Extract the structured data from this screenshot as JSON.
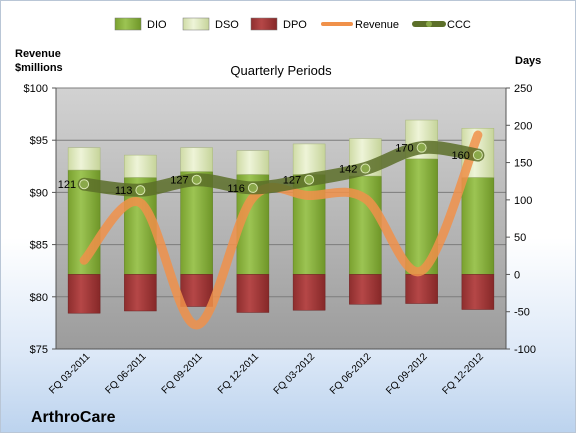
{
  "legend": [
    {
      "name": "DIO",
      "kind": "bar",
      "color": "#8cb43f"
    },
    {
      "name": "DSO",
      "kind": "bar",
      "color": "#dde8bd"
    },
    {
      "name": "DPO",
      "kind": "bar",
      "color": "#a83a3a"
    },
    {
      "name": "Revenue",
      "kind": "line",
      "color": "#f0914a"
    },
    {
      "name": "CCC",
      "kind": "line",
      "color": "#5c6f29"
    }
  ],
  "left_axis_title": [
    "Revenue",
    "$millions"
  ],
  "right_axis_title": "Days",
  "company": "ArthroCare",
  "chart_data": {
    "type": "bar",
    "title": "Quarterly Periods",
    "categories": [
      "FQ 03-2011",
      "FQ 06-2011",
      "FQ 09-2011",
      "FQ 12-2011",
      "FQ 03-2012",
      "FQ 06-2012",
      "FQ 09-2012",
      "FQ 12-2012"
    ],
    "series": [
      {
        "name": "DIO",
        "axis": "right",
        "values": [
          140,
          130,
          138,
          134,
          134,
          132,
          155,
          130
        ]
      },
      {
        "name": "DSO",
        "axis": "right",
        "values": [
          30,
          30,
          32,
          32,
          41,
          50,
          52,
          66
        ]
      },
      {
        "name": "DPO",
        "axis": "right",
        "values": [
          -52,
          -49,
          -43,
          -51,
          -48,
          -40,
          -39,
          -47
        ]
      },
      {
        "name": "Revenue",
        "axis": "left",
        "type": "line",
        "values": [
          83.5,
          89.0,
          77.3,
          89.5,
          89.7,
          89.4,
          82.5,
          95.5
        ]
      },
      {
        "name": "CCC",
        "axis": "right",
        "type": "line",
        "values": [
          121,
          113,
          127,
          116,
          127,
          142,
          170,
          160
        ]
      }
    ],
    "data_labels": [
      "121",
      "113",
      "127",
      "116",
      "127",
      "142",
      "170",
      "160"
    ],
    "left_axis": {
      "ylim": [
        75,
        100
      ],
      "ticks": [
        "$75",
        "$80",
        "$85",
        "$90",
        "$95",
        "$100"
      ]
    },
    "right_axis": {
      "ylim": [
        -100,
        250
      ],
      "ticks": [
        "-100",
        "-50",
        "0",
        "50",
        "100",
        "150",
        "200",
        "250"
      ]
    },
    "grid": true,
    "legend_position": "top"
  }
}
